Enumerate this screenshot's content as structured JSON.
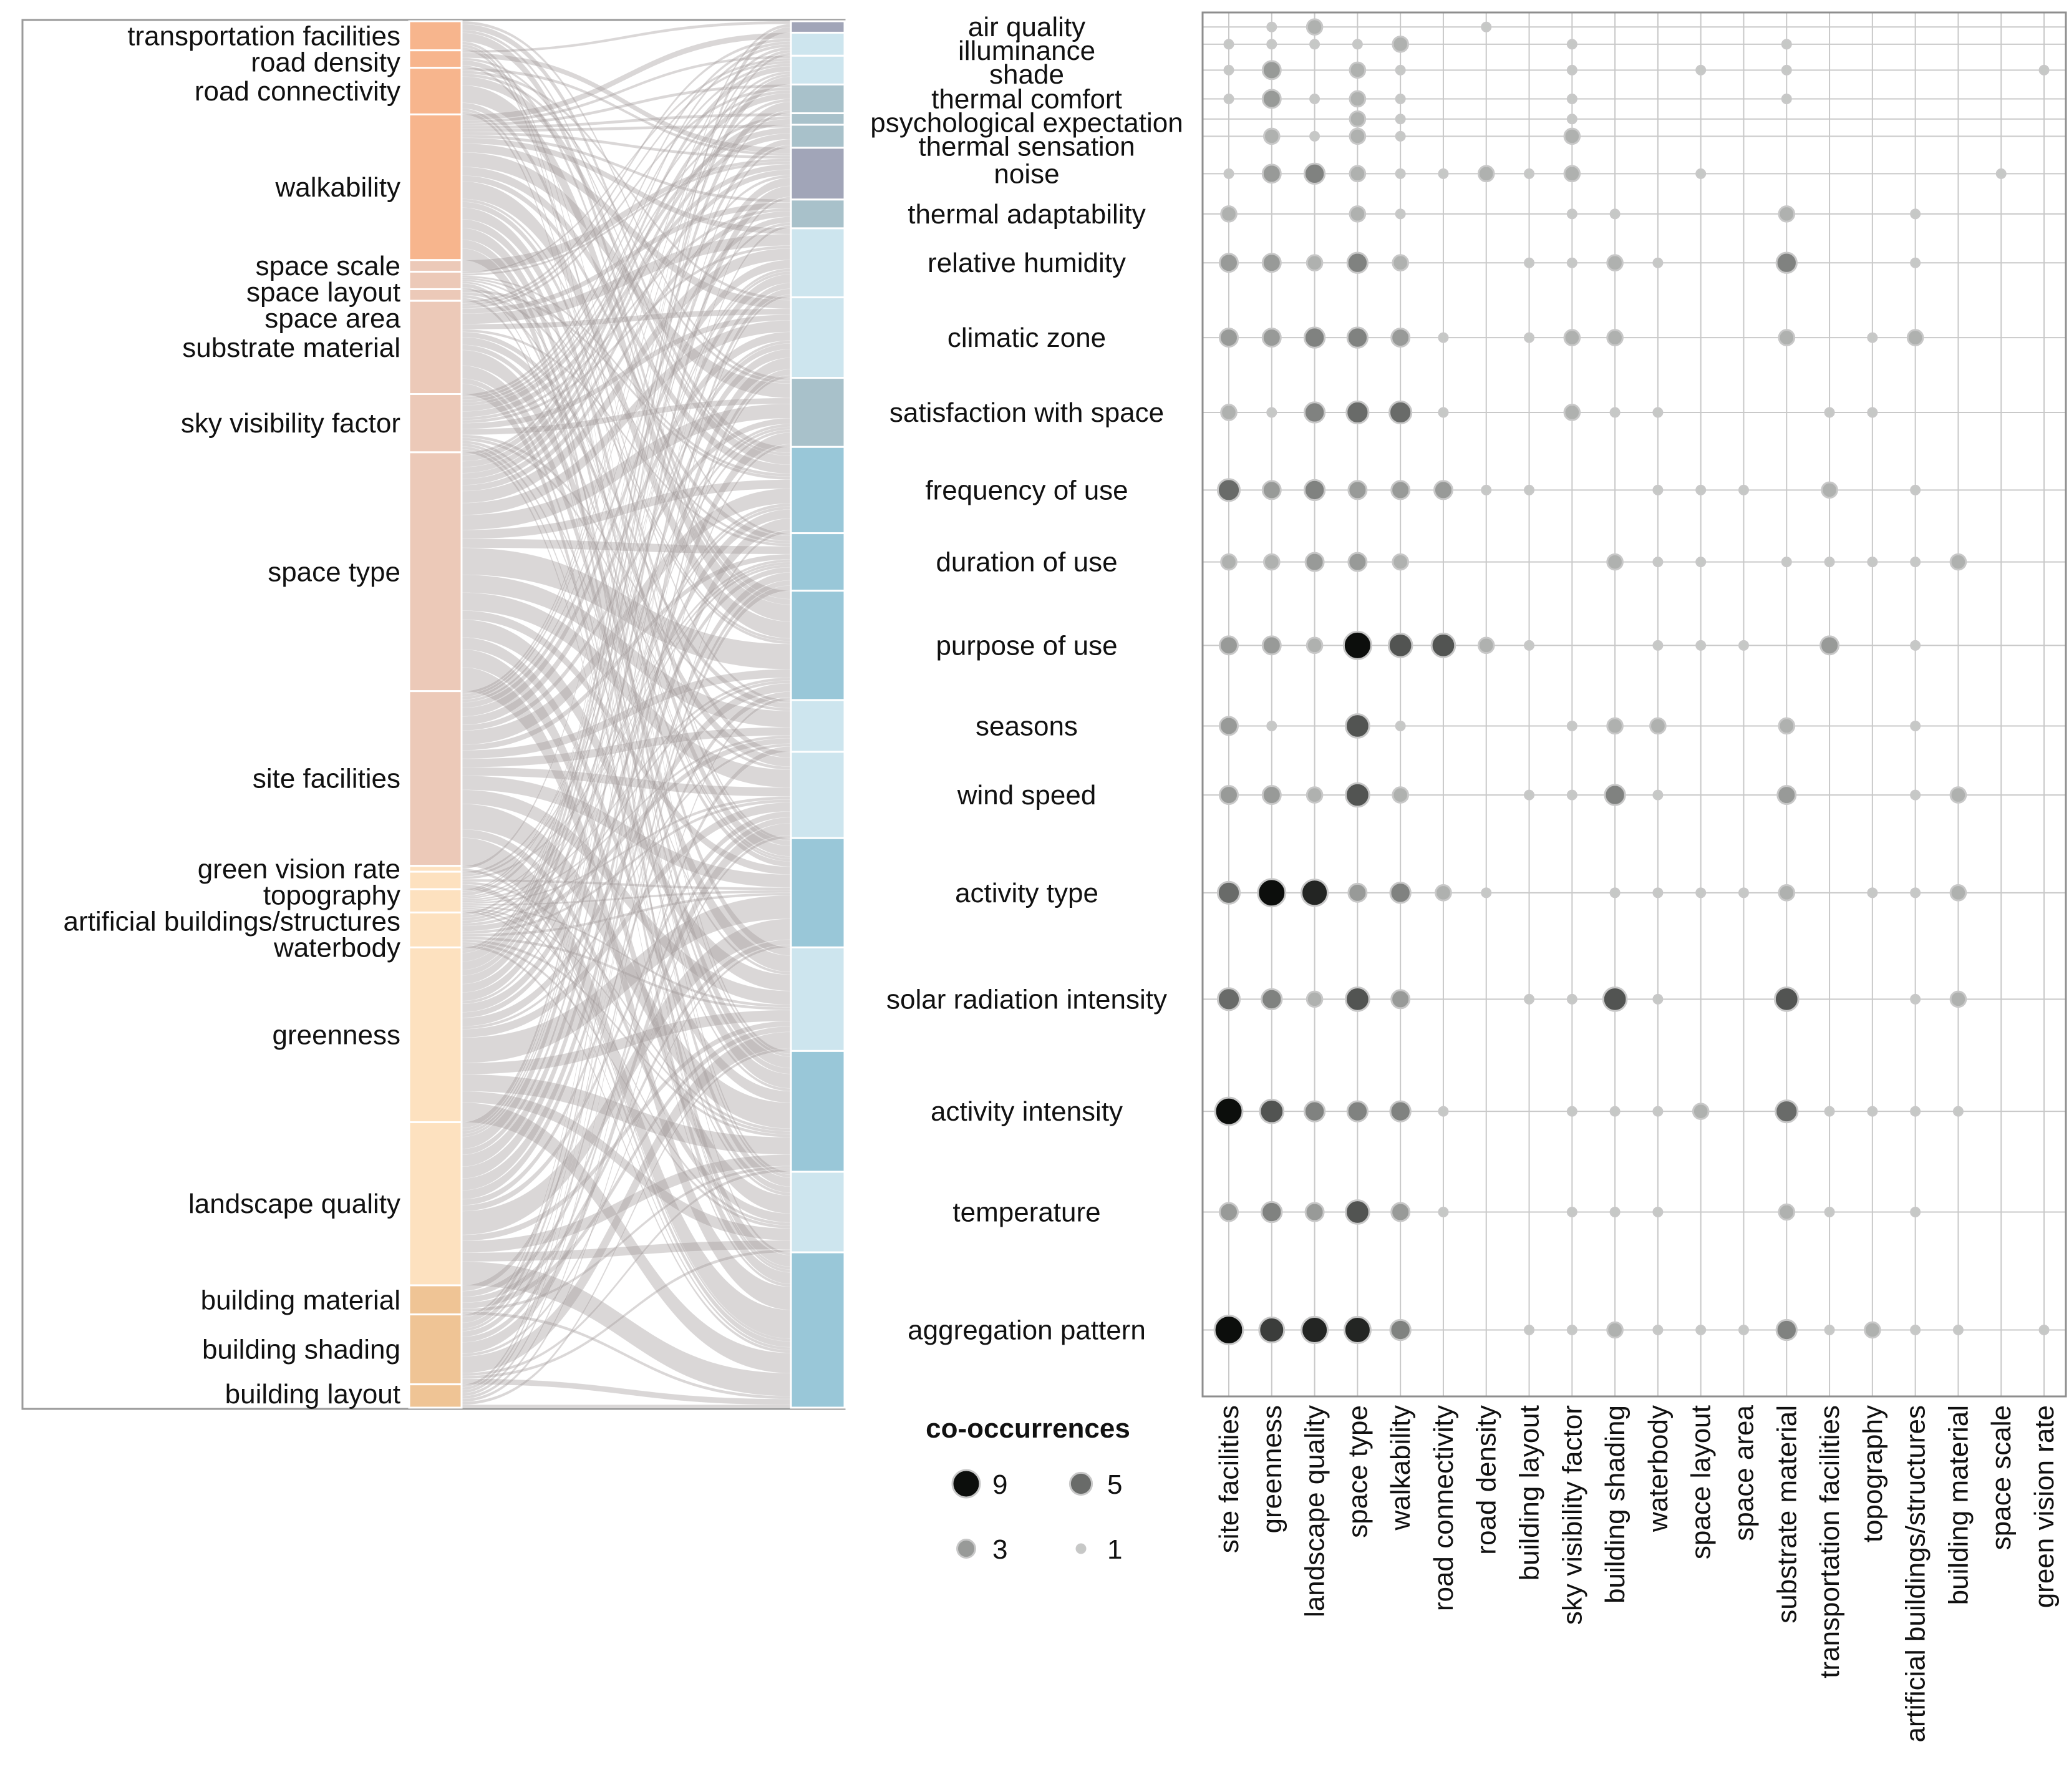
{
  "colors": {
    "frame": "#9a9a9a",
    "flow": "#a39c9a",
    "grid": "#c9c9c9",
    "dot_stroke": "#c8c8c8",
    "left_strong": "#f7b58d",
    "left_pink": "#ecc9b8",
    "left_peach": "#fde1bf",
    "left_tan": "#efc495",
    "right_light": "#cde5ee",
    "right_medium": "#99c7d8",
    "right_gray": "#a8c1ca",
    "right_purple": "#a1a5b8"
  },
  "chart_data": [
    {
      "type": "alluvial",
      "left_axis": [
        {
          "label": "transportation facilities",
          "weight": 5,
          "color": "left_strong"
        },
        {
          "label": "road density",
          "weight": 3,
          "color": "left_strong"
        },
        {
          "label": "road connectivity",
          "weight": 8,
          "color": "left_strong"
        },
        {
          "label": "walkability",
          "weight": 25,
          "color": "left_strong"
        },
        {
          "label": "space scale",
          "weight": 2,
          "color": "left_pink"
        },
        {
          "label": "space layout",
          "weight": 3,
          "color": "left_pink"
        },
        {
          "label": "space area",
          "weight": 2,
          "color": "left_pink"
        },
        {
          "label": "substrate material",
          "weight": 16,
          "color": "left_pink"
        },
        {
          "label": "sky visibility factor",
          "weight": 10,
          "color": "left_pink"
        },
        {
          "label": "space type",
          "weight": 41,
          "color": "left_pink"
        },
        {
          "label": "site facilities",
          "weight": 30,
          "color": "left_pink"
        },
        {
          "label": "green vision rate",
          "weight": 1,
          "color": "left_peach"
        },
        {
          "label": "topography",
          "weight": 3,
          "color": "left_peach"
        },
        {
          "label": "artificial buildings/structures",
          "weight": 4,
          "color": "left_peach"
        },
        {
          "label": "waterbody",
          "weight": 6,
          "color": "left_peach"
        },
        {
          "label": "greenness",
          "weight": 30,
          "color": "left_peach"
        },
        {
          "label": "landscape quality",
          "weight": 28,
          "color": "left_peach"
        },
        {
          "label": "building material",
          "weight": 5,
          "color": "left_tan"
        },
        {
          "label": "building shading",
          "weight": 12,
          "color": "left_tan"
        },
        {
          "label": "building layout",
          "weight": 4,
          "color": "left_tan"
        }
      ],
      "right_axis": [
        {
          "label": "air quality",
          "weight": 2,
          "color": "right_purple"
        },
        {
          "label": "illuminance",
          "weight": 4,
          "color": "right_light"
        },
        {
          "label": "shade",
          "weight": 5,
          "color": "right_light"
        },
        {
          "label": "thermal comfort",
          "weight": 5,
          "color": "right_gray"
        },
        {
          "label": "psychological expectation",
          "weight": 2,
          "color": "right_gray"
        },
        {
          "label": "thermal sensation",
          "weight": 4,
          "color": "right_gray"
        },
        {
          "label": "noise",
          "weight": 9,
          "color": "right_purple"
        },
        {
          "label": "thermal adaptability",
          "weight": 5,
          "color": "right_gray"
        },
        {
          "label": "relative humidity",
          "weight": 12,
          "color": "right_light"
        },
        {
          "label": "climatic zone",
          "weight": 14,
          "color": "right_light"
        },
        {
          "label": "satisfaction with space",
          "weight": 12,
          "color": "right_gray"
        },
        {
          "label": "frequency of use",
          "weight": 15,
          "color": "right_medium"
        },
        {
          "label": "duration of use",
          "weight": 10,
          "color": "right_medium"
        },
        {
          "label": "purpose of use",
          "weight": 19,
          "color": "right_medium"
        },
        {
          "label": "seasons",
          "weight": 9,
          "color": "right_light"
        },
        {
          "label": "wind speed",
          "weight": 15,
          "color": "right_light"
        },
        {
          "label": "activity type",
          "weight": 19,
          "color": "right_medium"
        },
        {
          "label": "solar radiation intensity",
          "weight": 18,
          "color": "right_light"
        },
        {
          "label": "activity intensity",
          "weight": 21,
          "color": "right_medium"
        },
        {
          "label": "temperature",
          "weight": 14,
          "color": "right_light"
        },
        {
          "label": "aggregation pattern",
          "weight": 27,
          "color": "right_medium"
        }
      ]
    },
    {
      "type": "bubble",
      "legend_title": "co-occurrences",
      "legend": [
        9,
        5,
        3,
        1
      ],
      "x_categories": [
        "site facilities",
        "greenness",
        "landscape quality",
        "space type",
        "walkability",
        "road connectivity",
        "road density",
        "building layout",
        "sky visibility factor",
        "building shading",
        "waterbody",
        "space layout",
        "space area",
        "substrate material",
        "transportation facilities",
        "topography",
        "artificial buildings/structures",
        "building material",
        "space scale",
        "green vision rate"
      ],
      "y_categories": [
        "air quality",
        "illuminance",
        "shade",
        "thermal comfort",
        "psychological expectation",
        "thermal sensation",
        "noise",
        "thermal adaptability",
        "relative humidity",
        "climatic zone",
        "satisfaction with space",
        "frequency of use",
        "duration of use",
        "purpose of use",
        "seasons",
        "wind speed",
        "activity type",
        "solar radiation intensity",
        "activity intensity",
        "temperature",
        "aggregation pattern"
      ],
      "matrix": [
        [
          0,
          1,
          2,
          0,
          0,
          0,
          1,
          0,
          0,
          0,
          0,
          0,
          0,
          0,
          0,
          0,
          0,
          0,
          0,
          0
        ],
        [
          1,
          1,
          1,
          1,
          2,
          0,
          0,
          0,
          1,
          0,
          0,
          0,
          0,
          1,
          0,
          0,
          0,
          0,
          0,
          0
        ],
        [
          1,
          3,
          0,
          2,
          1,
          0,
          0,
          0,
          1,
          0,
          0,
          1,
          0,
          1,
          0,
          0,
          0,
          0,
          0,
          1
        ],
        [
          1,
          3,
          1,
          2,
          1,
          0,
          0,
          0,
          1,
          0,
          0,
          0,
          0,
          1,
          0,
          0,
          0,
          0,
          0,
          0
        ],
        [
          0,
          0,
          0,
          2,
          1,
          0,
          0,
          0,
          1,
          0,
          0,
          0,
          0,
          0,
          0,
          0,
          0,
          0,
          0,
          0
        ],
        [
          0,
          2,
          1,
          2,
          1,
          0,
          0,
          0,
          2,
          0,
          0,
          0,
          0,
          0,
          0,
          0,
          0,
          0,
          0,
          0
        ],
        [
          1,
          3,
          4,
          2,
          1,
          1,
          2,
          1,
          2,
          0,
          0,
          1,
          0,
          0,
          0,
          0,
          0,
          0,
          1,
          0
        ],
        [
          2,
          0,
          0,
          2,
          1,
          0,
          0,
          0,
          1,
          1,
          0,
          0,
          0,
          2,
          0,
          0,
          1,
          0,
          0,
          0
        ],
        [
          3,
          3,
          2,
          4,
          2,
          0,
          0,
          1,
          1,
          2,
          1,
          0,
          0,
          4,
          0,
          0,
          1,
          0,
          0,
          0
        ],
        [
          3,
          3,
          4,
          4,
          3,
          1,
          0,
          1,
          2,
          2,
          0,
          0,
          0,
          2,
          0,
          1,
          2,
          0,
          0,
          0
        ],
        [
          2,
          1,
          4,
          5,
          5,
          1,
          0,
          0,
          2,
          1,
          1,
          0,
          0,
          0,
          1,
          1,
          0,
          0,
          0,
          0
        ],
        [
          5,
          3,
          4,
          3,
          3,
          3,
          1,
          1,
          0,
          0,
          1,
          1,
          1,
          0,
          2,
          0,
          1,
          0,
          0,
          0
        ],
        [
          2,
          2,
          3,
          3,
          2,
          0,
          0,
          0,
          0,
          2,
          1,
          1,
          0,
          1,
          1,
          1,
          1,
          2,
          0,
          0
        ],
        [
          3,
          3,
          2,
          9,
          6,
          6,
          2,
          1,
          0,
          0,
          1,
          1,
          1,
          0,
          3,
          0,
          1,
          0,
          0,
          0
        ],
        [
          3,
          1,
          0,
          6,
          1,
          0,
          0,
          0,
          1,
          2,
          2,
          0,
          0,
          2,
          0,
          0,
          1,
          0,
          0,
          0
        ],
        [
          3,
          3,
          2,
          6,
          2,
          0,
          0,
          1,
          1,
          4,
          1,
          0,
          0,
          3,
          0,
          0,
          1,
          2,
          0,
          0
        ],
        [
          5,
          9,
          8,
          3,
          4,
          2,
          1,
          0,
          0,
          1,
          1,
          1,
          1,
          2,
          0,
          1,
          1,
          2,
          0,
          0
        ],
        [
          5,
          4,
          2,
          6,
          3,
          0,
          0,
          1,
          1,
          6,
          1,
          0,
          0,
          6,
          0,
          0,
          1,
          2,
          0,
          0
        ],
        [
          9,
          6,
          4,
          4,
          4,
          1,
          0,
          0,
          1,
          1,
          1,
          2,
          0,
          5,
          1,
          1,
          1,
          1,
          0,
          0
        ],
        [
          3,
          4,
          3,
          6,
          3,
          1,
          0,
          0,
          1,
          1,
          1,
          0,
          0,
          2,
          1,
          0,
          1,
          0,
          0,
          0
        ],
        [
          10,
          7,
          8,
          8,
          4,
          0,
          0,
          1,
          1,
          2,
          1,
          1,
          1,
          4,
          1,
          2,
          1,
          1,
          0,
          1
        ]
      ]
    }
  ]
}
